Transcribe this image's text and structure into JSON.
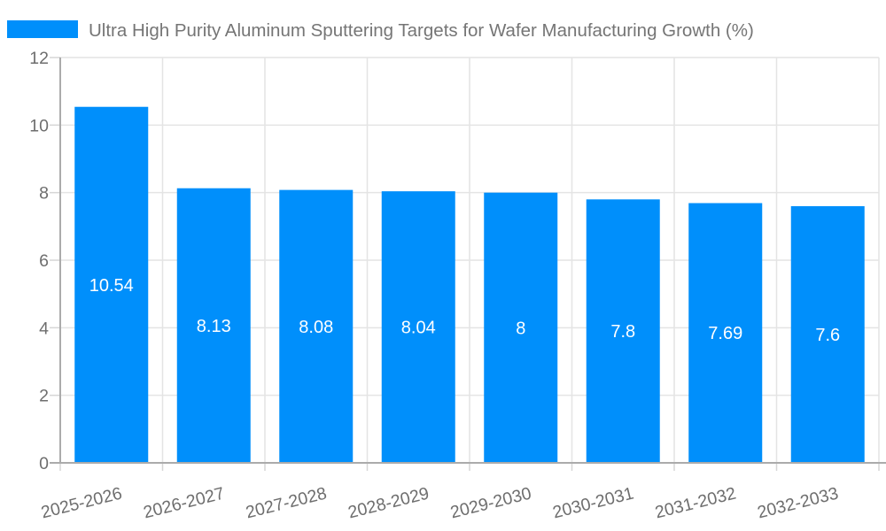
{
  "chart_data": {
    "type": "bar",
    "title": "Ultra High Purity Aluminum Sputtering Targets for Wafer Manufacturing Growth (%)",
    "categories": [
      "2025-2026",
      "2026-2027",
      "2027-2028",
      "2028-2029",
      "2029-2030",
      "2030-2031",
      "2031-2032",
      "2032-2033"
    ],
    "values": [
      10.54,
      8.13,
      8.08,
      8.04,
      8,
      7.8,
      7.69,
      7.6
    ],
    "value_labels": [
      "10.54",
      "8.13",
      "8.08",
      "8.04",
      "8",
      "7.8",
      "7.69",
      "7.6"
    ],
    "xlabel": "",
    "ylabel": "",
    "ylim": [
      0,
      12
    ],
    "yticks": [
      0,
      2,
      4,
      6,
      8,
      10,
      12
    ],
    "grid": "horizontal and vertical",
    "legend_position": "top-left",
    "legend_marker": "rect",
    "colors": {
      "bar": "#008FFB",
      "title_text": "#757575",
      "axis_text": "#6e6e6e",
      "value_text": "#ffffff",
      "grid_line": "#e4e4e4",
      "tick_line": "#d6d6d6",
      "axis_line": "#ababab",
      "background": "#ffffff"
    }
  }
}
